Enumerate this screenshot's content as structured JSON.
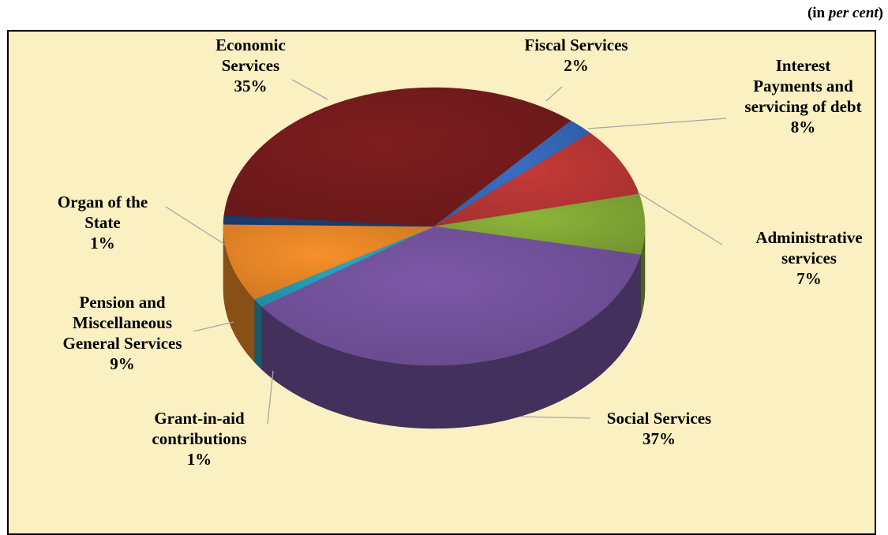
{
  "unit_prefix": "(in ",
  "unit_italic": "per cent",
  "unit_suffix": ")",
  "chart_data": {
    "type": "pie",
    "title": "",
    "slices": [
      {
        "label": "Economic\nServices",
        "value": 35,
        "display": "35%",
        "color": "#7d1d1f"
      },
      {
        "label": "Fiscal Services",
        "value": 2,
        "display": "2%",
        "color": "#3a6fc4"
      },
      {
        "label": "Interest\nPayments and\nservicing of debt",
        "value": 8,
        "display": "8%",
        "color": "#c63a38"
      },
      {
        "label": "Administrative\nservices",
        "value": 7,
        "display": "7%",
        "color": "#8cb53a"
      },
      {
        "label": "Social Services",
        "value": 37,
        "display": "37%",
        "color": "#7b58a7"
      },
      {
        "label": "Grant-in-aid\ncontributions",
        "value": 1,
        "display": "1%",
        "color": "#2aa7c4"
      },
      {
        "label": "Pension and\nMiscellaneous\nGeneral Services",
        "value": 9,
        "display": "9%",
        "color": "#f7902a"
      },
      {
        "label": "Organ of the\nState",
        "value": 1,
        "display": "1%",
        "color": "#1f3f73"
      }
    ]
  }
}
